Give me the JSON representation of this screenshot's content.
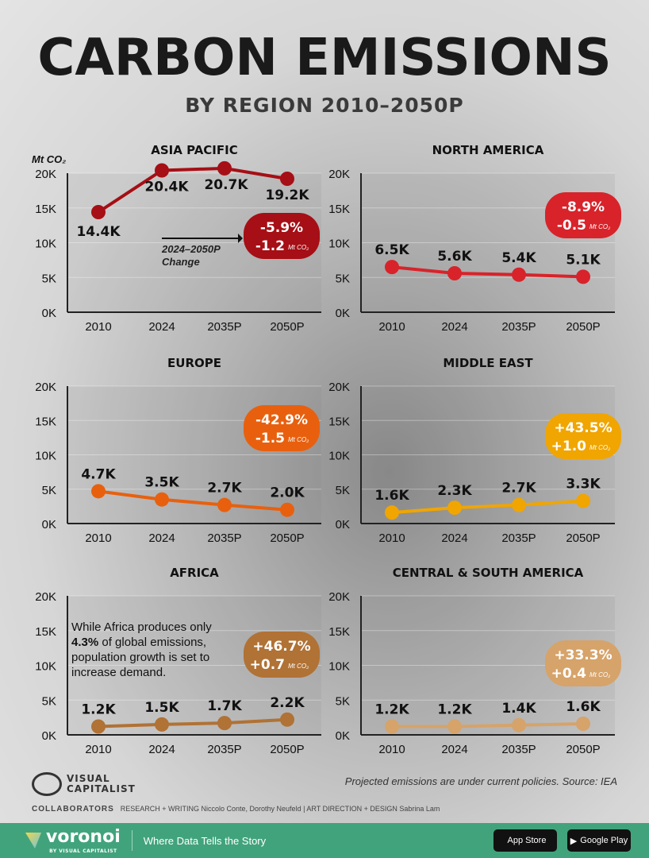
{
  "title": "CARBON EMISSIONS",
  "subtitle": "BY REGION 2010–2050P",
  "chart_data": {
    "type": "line",
    "unit": "Mt CO2",
    "categories": [
      "2010",
      "2024",
      "2035P",
      "2050P"
    ],
    "ylim": [
      0,
      20000
    ],
    "yticks": [
      "0K",
      "5K",
      "10K",
      "15K",
      "20K"
    ],
    "annotation": "2024–2050P Change",
    "panels": [
      {
        "title": "ASIA PACIFIC",
        "values": [
          14400,
          20400,
          20700,
          19200
        ],
        "labels": [
          "14.4K",
          "20.4K",
          "20.7K",
          "19.2K"
        ],
        "change_pct": "-5.9%",
        "change_abs": "-1.2",
        "color": "#a50f15"
      },
      {
        "title": "NORTH AMERICA",
        "values": [
          6500,
          5600,
          5400,
          5100
        ],
        "labels": [
          "6.5K",
          "5.6K",
          "5.4K",
          "5.1K"
        ],
        "change_pct": "-8.9%",
        "change_abs": "-0.5",
        "color": "#d8232a"
      },
      {
        "title": "EUROPE",
        "values": [
          4700,
          3500,
          2700,
          2000
        ],
        "labels": [
          "4.7K",
          "3.5K",
          "2.7K",
          "2.0K"
        ],
        "change_pct": "-42.9%",
        "change_abs": "-1.5",
        "color": "#e8600e"
      },
      {
        "title": "MIDDLE EAST",
        "values": [
          1600,
          2300,
          2700,
          3300
        ],
        "labels": [
          "1.6K",
          "2.3K",
          "2.7K",
          "3.3K"
        ],
        "change_pct": "+43.5%",
        "change_abs": "+1.0",
        "color": "#f0a500"
      },
      {
        "title": "AFRICA",
        "values": [
          1200,
          1500,
          1700,
          2200
        ],
        "labels": [
          "1.2K",
          "1.5K",
          "1.7K",
          "2.2K"
        ],
        "change_pct": "+46.7%",
        "change_abs": "+0.7",
        "color": "#b07235"
      },
      {
        "title": "CENTRAL & SOUTH AMERICA",
        "values": [
          1200,
          1200,
          1400,
          1600
        ],
        "labels": [
          "1.2K",
          "1.2K",
          "1.4K",
          "1.6K"
        ],
        "change_pct": "+33.3%",
        "change_abs": "+0.4",
        "color": "#d6a36a"
      }
    ]
  },
  "africa_note": {
    "pre": "While Africa produces only",
    "bold": "4.3%",
    "mid": " of global emissions,",
    "rest": "population growth is set to increase demand."
  },
  "unit_label": "Mt CO₂",
  "source": "Projected emissions are under current policies. Source: IEA",
  "brand": {
    "line1": "VISUAL",
    "line2": "CAPITALIST"
  },
  "collaborators": {
    "label": "COLLABORATORS",
    "text": "RESEARCH + WRITING Niccolo Conte, Dorothy Neufeld  |  ART DIRECTION + DESIGN Sabrina Lam"
  },
  "footer": {
    "brand": "voronoi",
    "byline": "BY VISUAL CAPITALIST",
    "tagline": "Where Data Tells the Story",
    "app_store": "App Store",
    "google_play": "Google Play"
  }
}
